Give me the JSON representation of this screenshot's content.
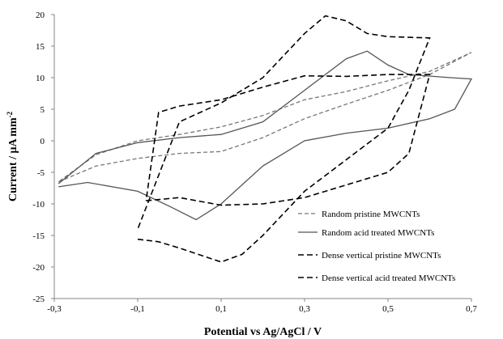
{
  "chart_data": {
    "type": "line",
    "xlabel": "Potential vs Ag/AgCl / V",
    "ylabel": "Current / μA mm",
    "ylabel_sup": "-2",
    "xlim": [
      -0.3,
      0.7
    ],
    "ylim": [
      -25,
      20
    ],
    "x_ticks": [
      -0.3,
      -0.1,
      0.1,
      0.3,
      0.5,
      0.7
    ],
    "x_tick_labels": [
      "-0,3",
      "-0,1",
      "0,1",
      "0,3",
      "0,5",
      "0,7"
    ],
    "y_ticks": [
      -25,
      -20,
      -15,
      -10,
      -5,
      0,
      5,
      10,
      15,
      20
    ],
    "y_tick_labels": [
      "-25",
      "-20",
      "-15",
      "-10",
      "-5",
      "0",
      "5",
      "10",
      "15",
      "20"
    ],
    "grid": false,
    "legend_position": "right",
    "series": [
      {
        "name": "Random pristine MWCNTs",
        "color": "#777777",
        "dash": "short",
        "points": [
          [
            -0.29,
            -6.5
          ],
          [
            -0.2,
            -4.0
          ],
          [
            -0.1,
            -2.8
          ],
          [
            0.0,
            -2.0
          ],
          [
            0.1,
            -1.7
          ],
          [
            0.2,
            0.5
          ],
          [
            0.3,
            3.5
          ],
          [
            0.4,
            5.8
          ],
          [
            0.5,
            8.0
          ],
          [
            0.6,
            10.5
          ],
          [
            0.7,
            14.0
          ],
          [
            0.6,
            11.0
          ],
          [
            0.5,
            9.5
          ],
          [
            0.4,
            7.8
          ],
          [
            0.3,
            6.5
          ],
          [
            0.2,
            4.0
          ],
          [
            0.1,
            2.2
          ],
          [
            0.0,
            1.0
          ],
          [
            -0.1,
            0.0
          ],
          [
            -0.2,
            -2.2
          ],
          [
            -0.29,
            -6.5
          ]
        ]
      },
      {
        "name": "Random acid treated MWCNTs",
        "color": "#555555",
        "dash": "solid",
        "points": [
          [
            -0.29,
            -7.3
          ],
          [
            -0.22,
            -6.6
          ],
          [
            -0.1,
            -8.0
          ],
          [
            -0.02,
            -10.5
          ],
          [
            0.04,
            -12.5
          ],
          [
            0.1,
            -10.0
          ],
          [
            0.2,
            -4.0
          ],
          [
            0.3,
            0.0
          ],
          [
            0.4,
            1.2
          ],
          [
            0.5,
            2.0
          ],
          [
            0.6,
            3.5
          ],
          [
            0.66,
            5.0
          ],
          [
            0.7,
            9.8
          ],
          [
            0.65,
            10.0
          ],
          [
            0.55,
            10.5
          ],
          [
            0.5,
            12.0
          ],
          [
            0.45,
            14.2
          ],
          [
            0.4,
            13.0
          ],
          [
            0.3,
            8.0
          ],
          [
            0.2,
            3.0
          ],
          [
            0.1,
            1.0
          ],
          [
            0.0,
            0.5
          ],
          [
            -0.1,
            -0.3
          ],
          [
            -0.2,
            -2.0
          ],
          [
            -0.29,
            -6.8
          ]
        ]
      },
      {
        "name": "Dense vertical pristine MWCNTs",
        "color": "#000000",
        "dash": "long",
        "points": [
          [
            -0.1,
            -15.6
          ],
          [
            -0.05,
            -16.0
          ],
          [
            0.0,
            -17.0
          ],
          [
            0.1,
            -19.2
          ],
          [
            0.15,
            -18.0
          ],
          [
            0.2,
            -15.0
          ],
          [
            0.3,
            -8.0
          ],
          [
            0.4,
            -3.0
          ],
          [
            0.5,
            2.0
          ],
          [
            0.55,
            8.0
          ],
          [
            0.6,
            16.3
          ],
          [
            0.5,
            16.5
          ],
          [
            0.45,
            17.0
          ],
          [
            0.4,
            19.0
          ],
          [
            0.35,
            19.8
          ],
          [
            0.3,
            17.0
          ],
          [
            0.2,
            10.0
          ],
          [
            0.1,
            6.0
          ],
          [
            0.0,
            3.0
          ],
          [
            -0.1,
            -14.0
          ]
        ]
      },
      {
        "name": "Dense vertical acid treated MWCNTs",
        "color": "#000000",
        "dash": "long",
        "points": [
          [
            -0.08,
            -9.5
          ],
          [
            0.0,
            -9.0
          ],
          [
            0.1,
            -10.2
          ],
          [
            0.2,
            -10.0
          ],
          [
            0.3,
            -9.0
          ],
          [
            0.4,
            -7.0
          ],
          [
            0.5,
            -5.0
          ],
          [
            0.55,
            -2.0
          ],
          [
            0.6,
            10.5
          ],
          [
            0.5,
            10.5
          ],
          [
            0.4,
            10.2
          ],
          [
            0.3,
            10.3
          ],
          [
            0.2,
            8.5
          ],
          [
            0.1,
            6.5
          ],
          [
            0.0,
            5.5
          ],
          [
            -0.05,
            4.5
          ],
          [
            -0.08,
            -9.5
          ]
        ]
      }
    ]
  }
}
